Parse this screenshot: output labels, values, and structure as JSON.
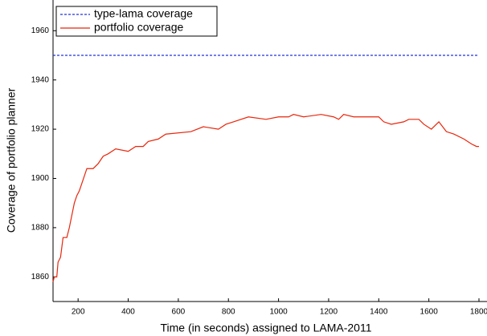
{
  "chart_data": {
    "type": "line",
    "xlabel": "Time (in seconds) assigned to LAMA-2011",
    "ylabel": "Coverage of portfolio planner",
    "xlim": [
      100,
      1800
    ],
    "ylim": [
      1850,
      1970
    ],
    "xticks": [
      200,
      400,
      600,
      800,
      1000,
      1200,
      1400,
      1600,
      1800
    ],
    "yticks": [
      1860,
      1880,
      1900,
      1920,
      1940,
      1960
    ],
    "legend": "upper left",
    "series": [
      {
        "name": "type-lama coverage",
        "color": "#2233dd",
        "dashed": true,
        "x": [
          100,
          1800
        ],
        "values": [
          1950,
          1950
        ]
      },
      {
        "name": "portfolio coverage",
        "color": "#e8260c",
        "dashed": false,
        "x": [
          100,
          105,
          115,
          120,
          130,
          140,
          155,
          165,
          175,
          185,
          195,
          205,
          215,
          225,
          235,
          260,
          280,
          300,
          320,
          350,
          400,
          430,
          460,
          480,
          520,
          550,
          650,
          700,
          760,
          790,
          820,
          880,
          950,
          1000,
          1040,
          1060,
          1100,
          1170,
          1220,
          1240,
          1260,
          1300,
          1400,
          1420,
          1450,
          1500,
          1520,
          1560,
          1580,
          1610,
          1640,
          1670,
          1700,
          1740,
          1770,
          1790,
          1800
        ],
        "values": [
          1858,
          1860,
          1860,
          1866,
          1868,
          1876,
          1876,
          1880,
          1885,
          1890,
          1893,
          1895,
          1898,
          1901,
          1904,
          1904,
          1906,
          1909,
          1910,
          1912,
          1911,
          1913,
          1913,
          1915,
          1916,
          1918,
          1919,
          1921,
          1920,
          1922,
          1923,
          1925,
          1924,
          1925,
          1925,
          1926,
          1925,
          1926,
          1925,
          1924,
          1926,
          1925,
          1925,
          1923,
          1922,
          1923,
          1924,
          1924,
          1922,
          1920,
          1923,
          1919,
          1918,
          1916,
          1914,
          1913,
          1913
        ]
      }
    ]
  }
}
